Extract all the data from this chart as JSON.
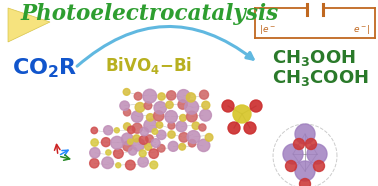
{
  "bg_color": "#ffffff",
  "title_text": "Photoelectrocatalysis",
  "title_color": "#2e9e30",
  "title_fontsize": 15.5,
  "co2r_color": "#1155cc",
  "co2r_fontsize": 16,
  "bivo4_color": "#b8b020",
  "bivo4_fontsize": 12,
  "product_color": "#2a7a2a",
  "product_fontsize": 13,
  "circuit_color": "#c06820",
  "arrow_color": "#60b8e0",
  "figsize": [
    3.78,
    1.86
  ],
  "dpi": 100
}
